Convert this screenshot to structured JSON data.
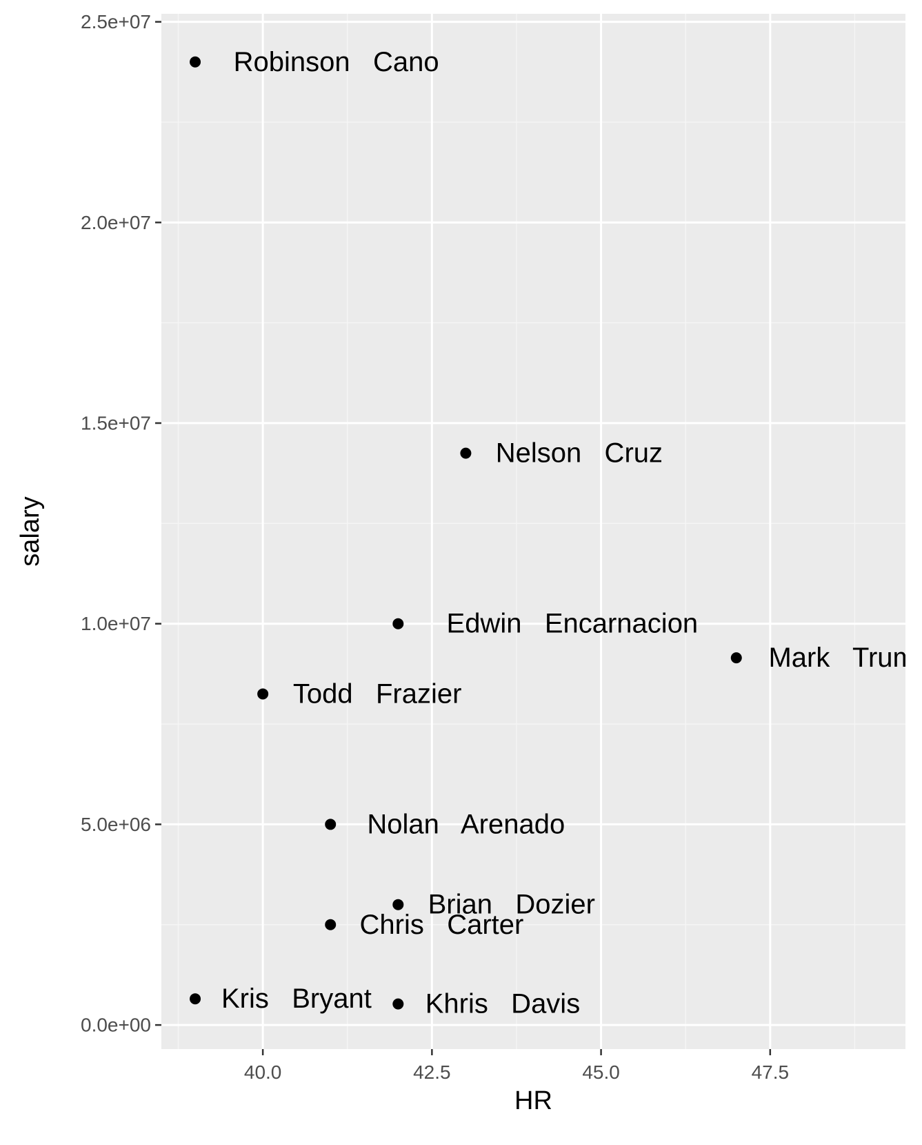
{
  "colors": {
    "panel_background": "#ebebeb",
    "grid_major": "#ffffff",
    "grid_minor": "#f5f5f5",
    "point": "#000000",
    "tick_text": "#4d4d4d",
    "tick_mark": "#333333"
  },
  "chart_data": {
    "type": "scatter",
    "title": "",
    "xlabel": "HR",
    "ylabel": "salary",
    "xlim": [
      38.5,
      49.5
    ],
    "ylim": [
      -600000,
      25200000
    ],
    "grid": true,
    "legend": "none",
    "x_ticks": [
      40.0,
      42.5,
      45.0,
      47.5
    ],
    "x_tick_labels": [
      "40.0",
      "42.5",
      "45.0",
      "47.5"
    ],
    "y_ticks": [
      0,
      5000000,
      10000000,
      15000000,
      20000000,
      25000000
    ],
    "y_tick_labels": [
      "0.0e+00",
      "5.0e+06",
      "1.0e+07",
      "1.5e+07",
      "2.0e+07",
      "2.5e+07"
    ],
    "points": [
      {
        "label": "Robinson   Cano",
        "x": 39,
        "y": 24000000
      },
      {
        "label": "Nelson   Cruz",
        "x": 43,
        "y": 14250000
      },
      {
        "label": "Edwin   Encarnacion",
        "x": 42,
        "y": 10000000
      },
      {
        "label": "Mark   Trumbo",
        "x": 47,
        "y": 9150000
      },
      {
        "label": "Todd   Frazier",
        "x": 40,
        "y": 8250000
      },
      {
        "label": "Nolan   Arenado",
        "x": 41,
        "y": 5000000
      },
      {
        "label": "Brian   Dozier",
        "x": 42,
        "y": 3000000
      },
      {
        "label": "Chris   Carter",
        "x": 41,
        "y": 2500000
      },
      {
        "label": "Kris   Bryant",
        "x": 39,
        "y": 652000
      },
      {
        "label": "Khris   Davis",
        "x": 42,
        "y": 524000
      }
    ]
  }
}
